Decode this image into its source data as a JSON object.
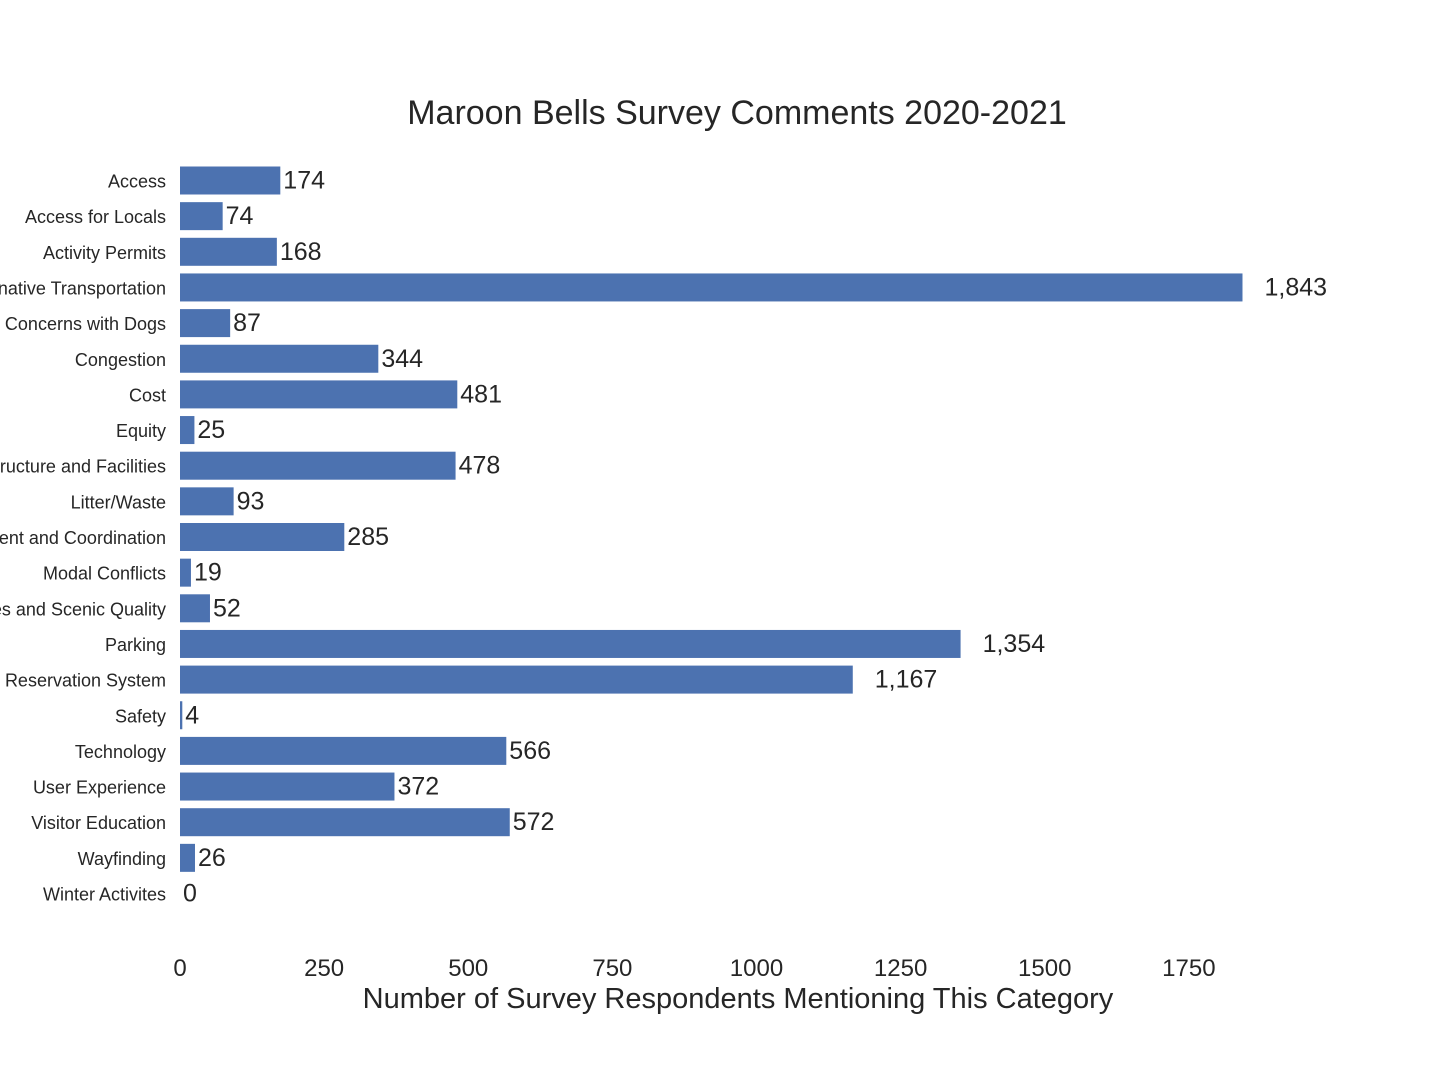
{
  "chart_data": {
    "type": "bar",
    "orientation": "horizontal",
    "title": "Maroon Bells Survey Comments 2020-2021",
    "xlabel": "Number of Survey Respondents Mentioning This Category",
    "ylabel": "",
    "xlim": [
      0,
      2000
    ],
    "xticks": [
      0,
      250,
      500,
      750,
      1000,
      1250,
      1500,
      1750
    ],
    "grid": false,
    "bar_color": "#4c72b0",
    "categories": [
      "Access",
      "Access for Locals",
      "Activity Permits",
      "Alternative Transportation",
      "Concerns with Dogs",
      "Congestion",
      "Cost",
      "Equity",
      "Infrastructure and Facilities",
      "Litter/Waste",
      "Management and Coordination",
      "Modal Conflicts",
      "Natural Resources and Scenic Quality",
      "Parking",
      "Reservation System",
      "Safety",
      "Technology",
      "User Experience",
      "Visitor Education",
      "Wayfinding",
      "Winter Activites"
    ],
    "values": [
      174,
      74,
      168,
      1843,
      87,
      344,
      481,
      25,
      478,
      93,
      285,
      19,
      52,
      1354,
      1167,
      4,
      566,
      372,
      572,
      26,
      0
    ],
    "value_labels": [
      "174",
      "74",
      "168",
      "1,843",
      "87",
      "344",
      "481",
      "25",
      "478",
      "93",
      "285",
      "19",
      "52",
      "1,354",
      "1,167",
      "4",
      "566",
      "372",
      "572",
      "26",
      "0"
    ]
  }
}
